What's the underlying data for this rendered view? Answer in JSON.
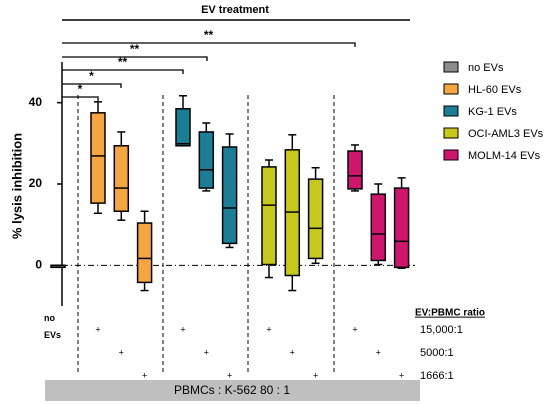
{
  "chart_data": {
    "type": "box",
    "title": "EV treatment",
    "ylabel": "% lysis inhibition",
    "ylim": [
      -10,
      50
    ],
    "yticks": [
      0,
      20,
      40
    ],
    "reference_line": 0,
    "legend_position": "right",
    "series": [
      {
        "name": "no EVs",
        "color": "#8c8c8c",
        "boxes": [
          {
            "min": 0,
            "q1": 0,
            "median": 0,
            "q3": 0,
            "max": 0
          }
        ]
      },
      {
        "name": "HL-60 EVs",
        "color": "#f7a541",
        "boxes": [
          {
            "min": 12.8,
            "q1": 15.3,
            "median": 26.9,
            "q3": 37.5,
            "max": 40.2
          },
          {
            "min": 11.1,
            "q1": 13.3,
            "median": 19,
            "q3": 29.4,
            "max": 32.8
          },
          {
            "min": -6.2,
            "q1": -4.2,
            "median": 1.7,
            "q3": 10.4,
            "max": 13.3
          }
        ]
      },
      {
        "name": "KG-1 EVs",
        "color": "#1a7f96",
        "boxes": [
          {
            "min": 29.4,
            "q1": 29.4,
            "median": 29.9,
            "q3": 38.5,
            "max": 41.7
          },
          {
            "min": 18.3,
            "q1": 19,
            "median": 23.5,
            "q3": 32.8,
            "max": 35
          },
          {
            "min": 4.4,
            "q1": 5.4,
            "median": 14.1,
            "q3": 29.1,
            "max": 32.3
          }
        ]
      },
      {
        "name": "OCI-AML3 EVs",
        "color": "#c8c81a",
        "boxes": [
          {
            "min": -3,
            "q1": 0.2,
            "median": 14.8,
            "q3": 24.2,
            "max": 25.9
          },
          {
            "min": -6.2,
            "q1": -2.5,
            "median": 13.1,
            "q3": 28.4,
            "max": 32.1
          },
          {
            "min": 0.5,
            "q1": 1.7,
            "median": 9.1,
            "q3": 21.2,
            "max": 24
          }
        ]
      },
      {
        "name": "MOLM-14 EVs",
        "color": "#d0156e",
        "boxes": [
          {
            "min": 18.3,
            "q1": 18.8,
            "median": 22,
            "q3": 28.1,
            "max": 29.6
          },
          {
            "min": 0.2,
            "q1": 1.2,
            "median": 7.7,
            "q3": 17.5,
            "max": 20
          },
          {
            "min": -0.7,
            "q1": -0.5,
            "median": 5.9,
            "q3": 19,
            "max": 21.5
          }
        ]
      }
    ],
    "control_label": "no EVs",
    "ratio_heading": "EV:PBMC ratio",
    "ratios": [
      "15,000:1",
      "5000:1",
      "1666:1"
    ],
    "marker": "+",
    "significance": [
      "*",
      "*",
      "**",
      "**",
      "**"
    ],
    "footer": "PBMCs : K-562 80 : 1"
  }
}
